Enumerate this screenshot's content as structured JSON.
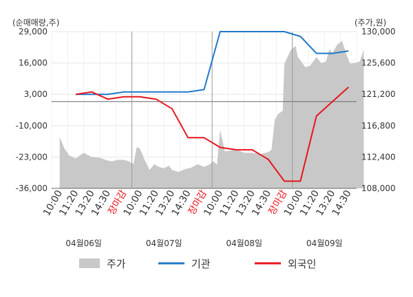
{
  "chart_data": {
    "type": "line",
    "left_axis": {
      "label": "(순매매량,주)",
      "ticks": [
        29000,
        16000,
        3000,
        -10000,
        -23000,
        -36000
      ],
      "tick_labels": [
        "29,000",
        "16,000",
        "3,000",
        "-10,000",
        "-23,000",
        "-36,000"
      ],
      "range": [
        -36000,
        29000
      ]
    },
    "right_axis": {
      "label": "(주가,원)",
      "ticks": [
        130000,
        125600,
        121200,
        116800,
        112400,
        108000
      ],
      "tick_labels": [
        "130,000",
        "125,600",
        "121,200",
        "116,800",
        "112,400",
        "108,000"
      ],
      "range": [
        108000,
        130000
      ]
    },
    "x_tick_labels": [
      "10:00",
      "11:20",
      "13:20",
      "14:30",
      "장마감",
      "10:00",
      "11:20",
      "13:20",
      "14:30",
      "장마감",
      "10:00",
      "11:20",
      "13:20",
      "14:30",
      "장마감",
      "10:00",
      "11:20",
      "13:20",
      "14:30"
    ],
    "x_tick_close_flags": [
      false,
      false,
      false,
      false,
      true,
      false,
      false,
      false,
      false,
      true,
      false,
      false,
      false,
      false,
      true,
      false,
      false,
      false,
      false
    ],
    "dates": [
      "04월06일",
      "04월07일",
      "04월08일",
      "04월09일"
    ],
    "grid": true,
    "zero_line": true,
    "series": [
      {
        "name": "주가",
        "kind": "area",
        "axis": "right",
        "color": "#c8c8c8",
        "x": [
          0,
          0.3,
          0.6,
          1,
          1.5,
          2,
          2.5,
          3,
          3.3,
          3.6,
          4,
          4.3,
          4.6,
          4.8,
          5,
          5.3,
          5.6,
          5.9,
          6.2,
          6.5,
          6.8,
          7,
          7.4,
          7.8,
          8.2,
          8.6,
          9,
          9.3,
          9.6,
          9.8,
          10,
          10.3,
          10.6,
          11,
          11.5,
          12,
          12.5,
          13,
          13.2,
          13.4,
          13.6,
          13.9,
          14,
          14.4,
          14.7,
          14.85,
          15,
          15.3,
          15.6,
          16,
          16.3,
          16.6,
          16.8,
          17,
          17.3,
          17.6,
          17.9,
          18.1,
          18.4,
          18.7,
          18.95
        ],
        "values": [
          115200,
          113600,
          112600,
          112200,
          113000,
          112400,
          112300,
          111900,
          111800,
          112000,
          112000,
          111800,
          111400,
          113800,
          113600,
          112000,
          110600,
          111400,
          111000,
          110800,
          111200,
          110600,
          110300,
          110700,
          110900,
          111400,
          111000,
          111300,
          111800,
          111300,
          116200,
          113200,
          113300,
          113500,
          113000,
          113000,
          112800,
          113100,
          113400,
          117600,
          118400,
          118900,
          125500,
          127400,
          128000,
          126400,
          126000,
          125000,
          125200,
          126400,
          125600,
          125800,
          127500,
          127000,
          128200,
          128700,
          126600,
          125500,
          125600,
          125800,
          127500
        ]
      },
      {
        "name": "기관",
        "kind": "line",
        "axis": "left",
        "color": "#1f78c8",
        "x": [
          1,
          2,
          3,
          4,
          5,
          6,
          7,
          8,
          9,
          10,
          11,
          12,
          13,
          14,
          15,
          16,
          17,
          18
        ],
        "values": [
          3000,
          3000,
          3000,
          4000,
          4000,
          4000,
          4000,
          4000,
          5000,
          29000,
          29000,
          29000,
          29000,
          29000,
          27000,
          20000,
          20000,
          21000
        ]
      },
      {
        "name": "외국인",
        "kind": "line",
        "axis": "left",
        "color": "#e8141b",
        "x": [
          1,
          2,
          3,
          4,
          5,
          6,
          7,
          8,
          9,
          10,
          11,
          12,
          13,
          14,
          15,
          16,
          17,
          18
        ],
        "values": [
          3000,
          4000,
          1000,
          2000,
          2000,
          1000,
          -3000,
          -15000,
          -15000,
          -19000,
          -20000,
          -20000,
          -24000,
          -33000,
          -33000,
          -6000,
          0,
          6000
        ]
      }
    ]
  }
}
